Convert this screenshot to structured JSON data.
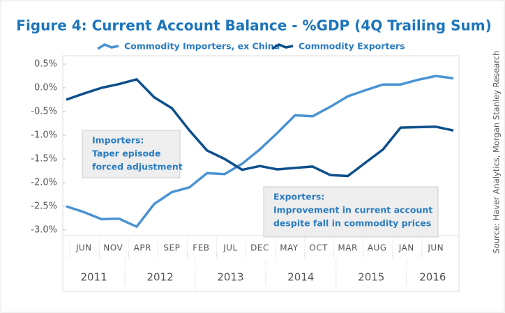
{
  "chart_data": {
    "type": "line",
    "title": "Figure 4: Current Account Balance - %GDP (4Q Trailing Sum)",
    "source": "Source: Haver Analytics, Morgan Stanley Research",
    "x": [
      "2011-03",
      "2011-06",
      "2011-09",
      "2011-12",
      "2012-03",
      "2012-06",
      "2012-09",
      "2012-12",
      "2013-03",
      "2013-06",
      "2013-09",
      "2013-12",
      "2014-03",
      "2014-06",
      "2014-09",
      "2014-12",
      "2015-03",
      "2015-06",
      "2015-09",
      "2015-12",
      "2016-03",
      "2016-06",
      "2016-09"
    ],
    "xlim": [
      "2011-03",
      "2016-09"
    ],
    "xticks": [
      {
        "value": "2011-06",
        "label": "JUN"
      },
      {
        "value": "2011-11",
        "label": "NOV"
      },
      {
        "value": "2012-04",
        "label": "APR"
      },
      {
        "value": "2012-09",
        "label": "SEP"
      },
      {
        "value": "2013-02",
        "label": "FEB"
      },
      {
        "value": "2013-07",
        "label": "JUL"
      },
      {
        "value": "2013-12",
        "label": "DEC"
      },
      {
        "value": "2014-05",
        "label": "MAY"
      },
      {
        "value": "2014-10",
        "label": "OCT"
      },
      {
        "value": "2015-03",
        "label": "MAR"
      },
      {
        "value": "2015-08",
        "label": "AUG"
      },
      {
        "value": "2016-01",
        "label": "JAN"
      },
      {
        "value": "2016-06",
        "label": "JUN"
      }
    ],
    "years": [
      "2011",
      "2012",
      "2013",
      "2014",
      "2015",
      "2016"
    ],
    "ylim": [
      -3.0,
      0.5
    ],
    "yticks": [
      {
        "value": 0.5,
        "label": "0.5%"
      },
      {
        "value": 0.0,
        "label": "0.0%"
      },
      {
        "value": -0.5,
        "label": "-0.5%"
      },
      {
        "value": -1.0,
        "label": "-1.0%"
      },
      {
        "value": -1.5,
        "label": "-1.5%"
      },
      {
        "value": -2.0,
        "label": "-2.0%"
      },
      {
        "value": -2.5,
        "label": "-2.5%"
      },
      {
        "value": -3.0,
        "label": "-3.0%"
      }
    ],
    "series": [
      {
        "name": "Commodity Importers, ex China",
        "color": "#4a93d3",
        "values": [
          -2.5,
          -2.62,
          -2.77,
          -2.76,
          -2.93,
          -2.45,
          -2.2,
          -2.1,
          -1.8,
          -1.82,
          -1.6,
          -1.3,
          -0.95,
          -0.58,
          -0.6,
          -0.4,
          -0.18,
          -0.05,
          0.07,
          0.07,
          0.17,
          0.25,
          0.2
        ]
      },
      {
        "name": "Commodity Exporters",
        "color": "#0d4f8b",
        "values": [
          -0.25,
          -0.12,
          0.0,
          0.08,
          0.18,
          -0.2,
          -0.43,
          -0.9,
          -1.32,
          -1.5,
          -1.73,
          -1.65,
          -1.72,
          -1.69,
          -1.66,
          -1.84,
          -1.86,
          -1.58,
          -1.3,
          -0.84,
          -0.83,
          -0.82,
          -0.9
        ]
      }
    ],
    "annotations": [
      {
        "lines": [
          "Importers:",
          "Taper episode",
          "forced adjustment"
        ]
      },
      {
        "lines": [
          "Exporters:",
          "Improvement in current account",
          "despite fall in commodity prices"
        ]
      }
    ]
  }
}
